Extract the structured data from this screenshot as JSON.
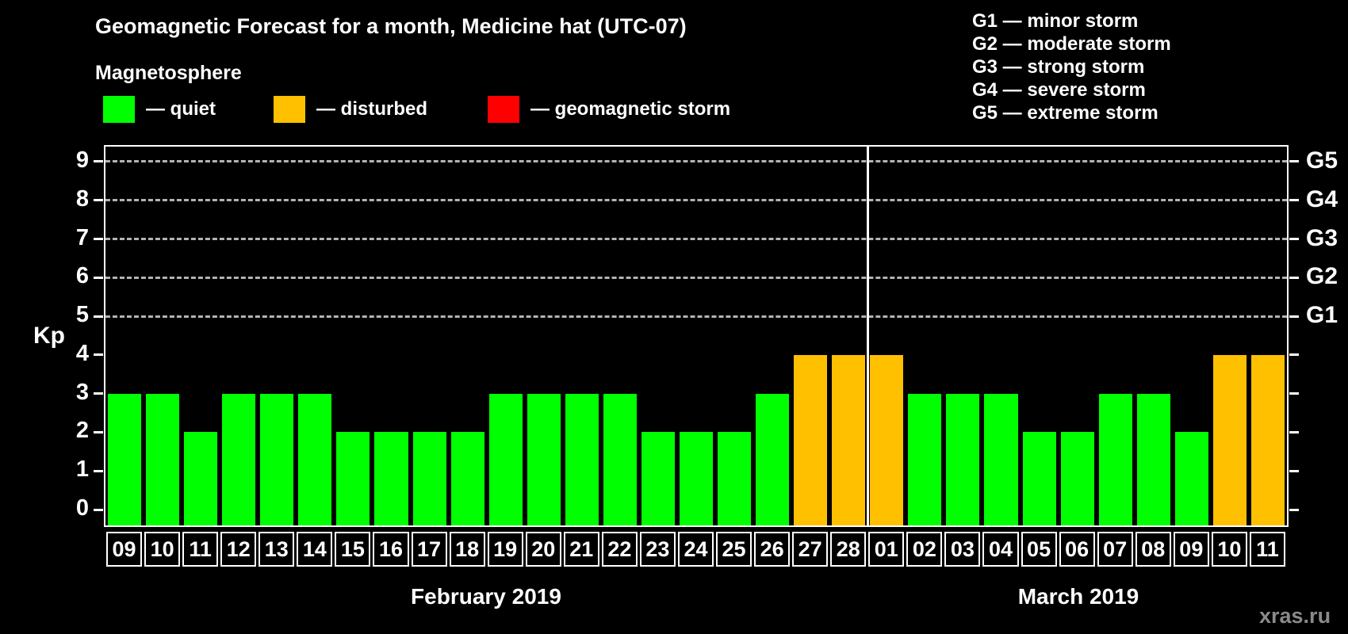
{
  "header": {
    "title": "Geomagnetic Forecast for a month, Medicine hat (UTC-07)",
    "subtitle": "Magnetosphere"
  },
  "legend": {
    "items": [
      {
        "name": "quiet",
        "label": "— quiet",
        "color": "#00ff00"
      },
      {
        "name": "disturbed",
        "label": "— disturbed",
        "color": "#ffc000"
      },
      {
        "name": "storm",
        "label": "— geomagnetic storm",
        "color": "#ff0000"
      }
    ]
  },
  "g_scale_legend": [
    "G1 — minor storm",
    "G2 — moderate storm",
    "G3 — strong storm",
    "G4 — severe storm",
    "G5 — extreme storm"
  ],
  "watermark": "xras.ru",
  "chart_data": {
    "type": "bar",
    "title": "Geomagnetic Forecast for a month, Medicine hat (UTC-07)",
    "ylabel": "Kp",
    "ylim": [
      0,
      9
    ],
    "y_ticks": [
      0,
      1,
      2,
      3,
      4,
      5,
      6,
      7,
      8,
      9
    ],
    "grid_levels": [
      5,
      6,
      7,
      8,
      9
    ],
    "grid_on": true,
    "right_axis_labels": [
      {
        "kp": 5,
        "label": "G1"
      },
      {
        "kp": 6,
        "label": "G2"
      },
      {
        "kp": 7,
        "label": "G3"
      },
      {
        "kp": 8,
        "label": "G4"
      },
      {
        "kp": 9,
        "label": "G5"
      }
    ],
    "status_colors": {
      "quiet": "#00ff00",
      "disturbed": "#ffc000",
      "storm": "#ff0000"
    },
    "months": [
      {
        "label": "February 2019",
        "points": [
          {
            "day": "09",
            "kp": 3,
            "status": "quiet"
          },
          {
            "day": "10",
            "kp": 3,
            "status": "quiet"
          },
          {
            "day": "11",
            "kp": 2,
            "status": "quiet"
          },
          {
            "day": "12",
            "kp": 3,
            "status": "quiet"
          },
          {
            "day": "13",
            "kp": 3,
            "status": "quiet"
          },
          {
            "day": "14",
            "kp": 3,
            "status": "quiet"
          },
          {
            "day": "15",
            "kp": 2,
            "status": "quiet"
          },
          {
            "day": "16",
            "kp": 2,
            "status": "quiet"
          },
          {
            "day": "17",
            "kp": 2,
            "status": "quiet"
          },
          {
            "day": "18",
            "kp": 2,
            "status": "quiet"
          },
          {
            "day": "19",
            "kp": 3,
            "status": "quiet"
          },
          {
            "day": "20",
            "kp": 3,
            "status": "quiet"
          },
          {
            "day": "21",
            "kp": 3,
            "status": "quiet"
          },
          {
            "day": "22",
            "kp": 3,
            "status": "quiet"
          },
          {
            "day": "23",
            "kp": 2,
            "status": "quiet"
          },
          {
            "day": "24",
            "kp": 2,
            "status": "quiet"
          },
          {
            "day": "25",
            "kp": 2,
            "status": "quiet"
          },
          {
            "day": "26",
            "kp": 3,
            "status": "quiet"
          },
          {
            "day": "27",
            "kp": 4,
            "status": "disturbed"
          },
          {
            "day": "28",
            "kp": 4,
            "status": "disturbed"
          }
        ]
      },
      {
        "label": "March 2019",
        "points": [
          {
            "day": "01",
            "kp": 4,
            "status": "disturbed"
          },
          {
            "day": "02",
            "kp": 3,
            "status": "quiet"
          },
          {
            "day": "03",
            "kp": 3,
            "status": "quiet"
          },
          {
            "day": "04",
            "kp": 3,
            "status": "quiet"
          },
          {
            "day": "05",
            "kp": 2,
            "status": "quiet"
          },
          {
            "day": "06",
            "kp": 2,
            "status": "quiet"
          },
          {
            "day": "07",
            "kp": 3,
            "status": "quiet"
          },
          {
            "day": "08",
            "kp": 3,
            "status": "quiet"
          },
          {
            "day": "09",
            "kp": 2,
            "status": "quiet"
          },
          {
            "day": "10",
            "kp": 4,
            "status": "disturbed"
          },
          {
            "day": "11",
            "kp": 4,
            "status": "disturbed"
          }
        ]
      }
    ]
  }
}
